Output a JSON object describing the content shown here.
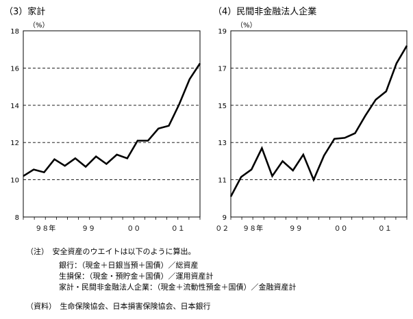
{
  "chart_data": [
    {
      "type": "line",
      "title": "（3）家計",
      "ylabel": "（%）",
      "ylim": [
        8,
        18
      ],
      "yticks": [
        8,
        10,
        12,
        14,
        16,
        18
      ],
      "xlim": [
        0,
        16
      ],
      "xtick_labels": [
        {
          "label": "９８年",
          "x": 2
        },
        {
          "label": "９９",
          "x": 5.9
        },
        {
          "label": "００",
          "x": 10
        },
        {
          "label": "０１",
          "x": 14
        },
        {
          "label": "０２",
          "x": 18
        }
      ],
      "grid": true,
      "series": [
        {
          "values": [
            10.2,
            10.55,
            10.4,
            11.1,
            10.75,
            11.15,
            10.7,
            11.25,
            10.85,
            11.35,
            11.15,
            12.1,
            12.1,
            12.75,
            12.9,
            14.05,
            15.4,
            16.25
          ]
        }
      ]
    },
    {
      "type": "line",
      "title": "（4）民間非金融法人企業",
      "ylabel": "（%）",
      "ylim": [
        9,
        19
      ],
      "yticks": [
        9,
        11,
        13,
        15,
        17,
        19
      ],
      "xlim": [
        0,
        16
      ],
      "xtick_labels": [
        {
          "label": "９８年",
          "x": 2
        },
        {
          "label": "９９",
          "x": 5.9
        },
        {
          "label": "００",
          "x": 10
        },
        {
          "label": "０１",
          "x": 14
        },
        {
          "label": "０２",
          "x": 18
        }
      ],
      "grid": true,
      "series": [
        {
          "values": [
            10.1,
            11.15,
            11.55,
            12.7,
            11.2,
            12.0,
            11.5,
            12.35,
            11.0,
            12.3,
            13.2,
            13.25,
            13.5,
            14.45,
            15.3,
            15.75,
            17.25,
            18.2
          ]
        }
      ]
    }
  ],
  "notes": {
    "line1": "（注）　安全資産のウエイトは以下のように算出。",
    "line2": "銀行：（現金＋日銀当預＋国債）／総資産",
    "line3": "生損保：（現金・預貯金＋国債）／運用資産計",
    "line4": "家計・民間非金融法人企業：（現金＋流動性預金＋国債）／金融資産計",
    "source": "（資料）　生命保険協会、日本損害保険協会、日本銀行"
  }
}
